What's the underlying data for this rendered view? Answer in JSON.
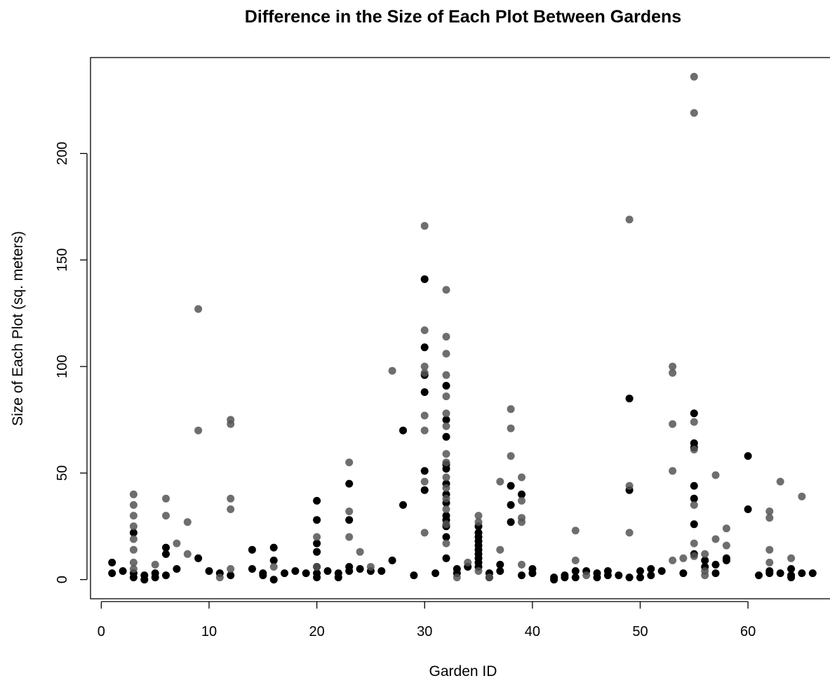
{
  "chart_data": {
    "type": "scatter",
    "title": "Difference in the Size of Each Plot Between Gardens",
    "xlabel": "Garden ID",
    "ylabel": "Size of Each Plot (sq. meters)",
    "xlim": [
      -1,
      68
    ],
    "ylim": [
      -9,
      245
    ],
    "xticks": [
      0,
      10,
      20,
      30,
      40,
      50,
      60
    ],
    "yticks": [
      0,
      50,
      100,
      150,
      200
    ],
    "grid": false,
    "legend": "none",
    "colors": {
      "dark": "#000000",
      "gray": "#555555"
    },
    "series": [
      {
        "color_key": "dark",
        "points": [
          [
            1,
            8
          ],
          [
            1,
            3
          ],
          [
            2,
            4
          ],
          [
            3,
            22
          ],
          [
            3,
            3
          ],
          [
            3,
            1
          ],
          [
            4,
            2
          ],
          [
            4,
            0
          ],
          [
            5,
            1
          ],
          [
            5,
            3
          ],
          [
            6,
            15
          ],
          [
            6,
            12
          ],
          [
            6,
            2
          ],
          [
            7,
            5
          ],
          [
            9,
            10
          ],
          [
            10,
            4
          ],
          [
            11,
            3
          ],
          [
            12,
            2
          ],
          [
            14,
            14
          ],
          [
            14,
            5
          ],
          [
            15,
            2
          ],
          [
            15,
            3
          ],
          [
            16,
            15
          ],
          [
            16,
            9
          ],
          [
            16,
            0
          ],
          [
            17,
            3
          ],
          [
            18,
            4
          ],
          [
            19,
            3
          ],
          [
            20,
            37
          ],
          [
            20,
            28
          ],
          [
            20,
            17
          ],
          [
            20,
            13
          ],
          [
            20,
            6
          ],
          [
            20,
            3
          ],
          [
            20,
            1
          ],
          [
            21,
            4
          ],
          [
            22,
            3
          ],
          [
            22,
            1
          ],
          [
            23,
            45
          ],
          [
            23,
            28
          ],
          [
            23,
            6
          ],
          [
            23,
            4
          ],
          [
            24,
            5
          ],
          [
            25,
            4
          ],
          [
            26,
            4
          ],
          [
            27,
            9
          ],
          [
            28,
            70
          ],
          [
            28,
            35
          ],
          [
            29,
            2
          ],
          [
            30,
            141
          ],
          [
            30,
            109
          ],
          [
            30,
            96
          ],
          [
            30,
            88
          ],
          [
            30,
            51
          ],
          [
            30,
            42
          ],
          [
            31,
            3
          ],
          [
            32,
            91
          ],
          [
            32,
            75
          ],
          [
            32,
            67
          ],
          [
            32,
            54
          ],
          [
            32,
            52
          ],
          [
            32,
            45
          ],
          [
            32,
            40
          ],
          [
            32,
            36
          ],
          [
            32,
            30
          ],
          [
            32,
            28
          ],
          [
            32,
            25
          ],
          [
            32,
            20
          ],
          [
            32,
            10
          ],
          [
            33,
            5
          ],
          [
            33,
            3
          ],
          [
            34,
            6
          ],
          [
            35,
            25
          ],
          [
            35,
            22
          ],
          [
            35,
            20
          ],
          [
            35,
            18
          ],
          [
            35,
            16
          ],
          [
            35,
            14
          ],
          [
            35,
            12
          ],
          [
            35,
            10
          ],
          [
            35,
            8
          ],
          [
            35,
            6
          ],
          [
            36,
            3
          ],
          [
            36,
            1
          ],
          [
            37,
            7
          ],
          [
            37,
            4
          ],
          [
            38,
            44
          ],
          [
            38,
            35
          ],
          [
            38,
            27
          ],
          [
            39,
            40
          ],
          [
            39,
            2
          ],
          [
            40,
            5
          ],
          [
            40,
            3
          ],
          [
            42,
            1
          ],
          [
            42,
            0
          ],
          [
            43,
            2
          ],
          [
            43,
            1
          ],
          [
            44,
            4
          ],
          [
            44,
            1
          ],
          [
            45,
            4
          ],
          [
            46,
            3
          ],
          [
            46,
            1
          ],
          [
            47,
            4
          ],
          [
            47,
            2
          ],
          [
            48,
            2
          ],
          [
            49,
            85
          ],
          [
            49,
            42
          ],
          [
            49,
            1
          ],
          [
            50,
            4
          ],
          [
            50,
            1
          ],
          [
            51,
            5
          ],
          [
            51,
            2
          ],
          [
            52,
            4
          ],
          [
            54,
            3
          ],
          [
            55,
            78
          ],
          [
            55,
            64
          ],
          [
            55,
            62
          ],
          [
            55,
            44
          ],
          [
            55,
            38
          ],
          [
            55,
            26
          ],
          [
            55,
            12
          ],
          [
            56,
            9
          ],
          [
            56,
            6
          ],
          [
            57,
            7
          ],
          [
            57,
            3
          ],
          [
            58,
            10
          ],
          [
            58,
            9
          ],
          [
            60,
            58
          ],
          [
            60,
            33
          ],
          [
            61,
            2
          ],
          [
            62,
            4
          ],
          [
            62,
            3
          ],
          [
            63,
            3
          ],
          [
            64,
            5
          ],
          [
            64,
            2
          ],
          [
            64,
            1
          ],
          [
            65,
            3
          ],
          [
            66,
            3
          ]
        ]
      },
      {
        "color_key": "gray",
        "points": [
          [
            3,
            40
          ],
          [
            3,
            35
          ],
          [
            3,
            30
          ],
          [
            3,
            25
          ],
          [
            3,
            19
          ],
          [
            3,
            14
          ],
          [
            3,
            8
          ],
          [
            3,
            5
          ],
          [
            5,
            7
          ],
          [
            6,
            38
          ],
          [
            6,
            30
          ],
          [
            7,
            17
          ],
          [
            8,
            27
          ],
          [
            8,
            12
          ],
          [
            9,
            127
          ],
          [
            9,
            70
          ],
          [
            11,
            1
          ],
          [
            12,
            75
          ],
          [
            12,
            73
          ],
          [
            12,
            38
          ],
          [
            12,
            33
          ],
          [
            12,
            5
          ],
          [
            16,
            6
          ],
          [
            20,
            20
          ],
          [
            20,
            6
          ],
          [
            23,
            55
          ],
          [
            23,
            32
          ],
          [
            23,
            20
          ],
          [
            24,
            13
          ],
          [
            25,
            6
          ],
          [
            27,
            98
          ],
          [
            30,
            166
          ],
          [
            30,
            117
          ],
          [
            30,
            100
          ],
          [
            30,
            97
          ],
          [
            30,
            77
          ],
          [
            30,
            70
          ],
          [
            30,
            46
          ],
          [
            30,
            22
          ],
          [
            32,
            136
          ],
          [
            32,
            114
          ],
          [
            32,
            106
          ],
          [
            32,
            96
          ],
          [
            32,
            86
          ],
          [
            32,
            78
          ],
          [
            32,
            72
          ],
          [
            32,
            59
          ],
          [
            32,
            55
          ],
          [
            32,
            48
          ],
          [
            32,
            43
          ],
          [
            32,
            38
          ],
          [
            32,
            33
          ],
          [
            32,
            26
          ],
          [
            32,
            17
          ],
          [
            33,
            1
          ],
          [
            34,
            8
          ],
          [
            35,
            30
          ],
          [
            35,
            27
          ],
          [
            35,
            4
          ],
          [
            36,
            1
          ],
          [
            37,
            46
          ],
          [
            37,
            14
          ],
          [
            38,
            80
          ],
          [
            38,
            71
          ],
          [
            38,
            58
          ],
          [
            39,
            48
          ],
          [
            39,
            37
          ],
          [
            39,
            29
          ],
          [
            39,
            27
          ],
          [
            39,
            7
          ],
          [
            44,
            23
          ],
          [
            44,
            9
          ],
          [
            45,
            2
          ],
          [
            49,
            169
          ],
          [
            49,
            44
          ],
          [
            49,
            22
          ],
          [
            53,
            100
          ],
          [
            53,
            97
          ],
          [
            53,
            73
          ],
          [
            53,
            51
          ],
          [
            53,
            9
          ],
          [
            54,
            10
          ],
          [
            55,
            236
          ],
          [
            55,
            219
          ],
          [
            55,
            74
          ],
          [
            55,
            61
          ],
          [
            55,
            35
          ],
          [
            55,
            17
          ],
          [
            55,
            11
          ],
          [
            56,
            12
          ],
          [
            56,
            4
          ],
          [
            56,
            2
          ],
          [
            57,
            49
          ],
          [
            57,
            19
          ],
          [
            58,
            24
          ],
          [
            58,
            16
          ],
          [
            62,
            32
          ],
          [
            62,
            29
          ],
          [
            62,
            14
          ],
          [
            62,
            8
          ],
          [
            63,
            46
          ],
          [
            64,
            10
          ],
          [
            65,
            39
          ]
        ]
      }
    ]
  }
}
